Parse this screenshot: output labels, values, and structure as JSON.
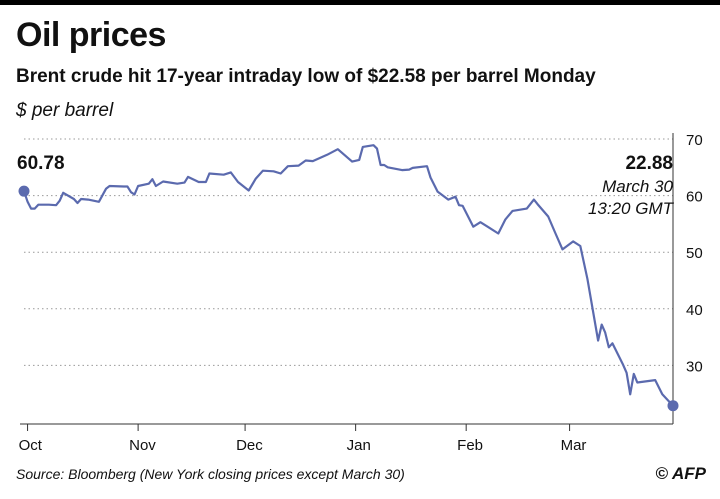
{
  "header": {
    "title": "Oil prices",
    "subtitle": "Brent crude hit 17-year intraday low of $22.58 per barrel Monday",
    "unit": "$ per barrel"
  },
  "footer": {
    "source": "Source: Bloomberg (New York closing prices except March 30)",
    "credit": "© AFP"
  },
  "colors": {
    "line": "#5b6aae",
    "grid": "#999999",
    "text": "#111111"
  },
  "chart_data": {
    "type": "line",
    "ylim": [
      20,
      70
    ],
    "xlim": [
      "2019-09-30",
      "2020-03-30"
    ],
    "yticks": [
      30,
      40,
      50,
      60,
      70
    ],
    "grid": true,
    "grid_style": "dotted-horizontal",
    "x_ticks": [
      {
        "label": "Oct",
        "date": "2019-10-01"
      },
      {
        "label": "Nov",
        "date": "2019-11-01"
      },
      {
        "label": "Dec",
        "date": "2019-12-01"
      },
      {
        "label": "Jan",
        "date": "2020-01-01"
      },
      {
        "label": "Feb",
        "date": "2020-02-01"
      },
      {
        "label": "Mar",
        "date": "2020-03-01"
      }
    ],
    "annotations": {
      "start": {
        "value_label": "60.78",
        "date": "2019-09-30",
        "value": 60.78
      },
      "end": {
        "value_label": "22.88",
        "date_label": "March 30",
        "time_label": "13:20 GMT",
        "date": "2020-03-30",
        "value": 22.88
      }
    },
    "series": [
      {
        "points": [
          [
            "2019-09-30",
            60.78
          ],
          [
            "2019-10-01",
            58.9
          ],
          [
            "2019-10-02",
            57.7
          ],
          [
            "2019-10-03",
            57.7
          ],
          [
            "2019-10-04",
            58.4
          ],
          [
            "2019-10-07",
            58.4
          ],
          [
            "2019-10-09",
            58.3
          ],
          [
            "2019-10-10",
            59.1
          ],
          [
            "2019-10-11",
            60.5
          ],
          [
            "2019-10-14",
            59.4
          ],
          [
            "2019-10-15",
            58.7
          ],
          [
            "2019-10-16",
            59.4
          ],
          [
            "2019-10-18",
            59.3
          ],
          [
            "2019-10-21",
            58.9
          ],
          [
            "2019-10-23",
            61.2
          ],
          [
            "2019-10-24",
            61.7
          ],
          [
            "2019-10-28",
            61.6
          ],
          [
            "2019-10-29",
            61.6
          ],
          [
            "2019-10-30",
            60.6
          ],
          [
            "2019-10-31",
            60.2
          ],
          [
            "2019-11-01",
            61.7
          ],
          [
            "2019-11-04",
            62.1
          ],
          [
            "2019-11-05",
            62.9
          ],
          [
            "2019-11-06",
            61.7
          ],
          [
            "2019-11-08",
            62.5
          ],
          [
            "2019-11-12",
            62.1
          ],
          [
            "2019-11-14",
            62.3
          ],
          [
            "2019-11-15",
            63.3
          ],
          [
            "2019-11-18",
            62.4
          ],
          [
            "2019-11-20",
            62.4
          ],
          [
            "2019-11-21",
            63.9
          ],
          [
            "2019-11-25",
            63.7
          ],
          [
            "2019-11-27",
            64.1
          ],
          [
            "2019-11-29",
            62.4
          ],
          [
            "2019-12-02",
            60.9
          ],
          [
            "2019-12-04",
            63.0
          ],
          [
            "2019-12-06",
            64.4
          ],
          [
            "2019-12-09",
            64.3
          ],
          [
            "2019-12-11",
            63.9
          ],
          [
            "2019-12-13",
            65.2
          ],
          [
            "2019-12-16",
            65.3
          ],
          [
            "2019-12-18",
            66.2
          ],
          [
            "2019-12-20",
            66.1
          ],
          [
            "2019-12-24",
            67.2
          ],
          [
            "2019-12-27",
            68.2
          ],
          [
            "2019-12-31",
            66.0
          ],
          [
            "2020-01-02",
            66.3
          ],
          [
            "2020-01-03",
            68.6
          ],
          [
            "2020-01-06",
            68.9
          ],
          [
            "2020-01-07",
            68.3
          ],
          [
            "2020-01-08",
            65.4
          ],
          [
            "2020-01-09",
            65.4
          ],
          [
            "2020-01-10",
            65.0
          ],
          [
            "2020-01-14",
            64.5
          ],
          [
            "2020-01-16",
            64.6
          ],
          [
            "2020-01-17",
            64.9
          ],
          [
            "2020-01-21",
            65.2
          ],
          [
            "2020-01-22",
            63.2
          ],
          [
            "2020-01-24",
            60.7
          ],
          [
            "2020-01-27",
            59.3
          ],
          [
            "2020-01-29",
            59.8
          ],
          [
            "2020-01-30",
            58.3
          ],
          [
            "2020-01-31",
            58.2
          ],
          [
            "2020-02-03",
            54.5
          ],
          [
            "2020-02-05",
            55.3
          ],
          [
            "2020-02-07",
            54.5
          ],
          [
            "2020-02-10",
            53.3
          ],
          [
            "2020-02-12",
            55.8
          ],
          [
            "2020-02-14",
            57.3
          ],
          [
            "2020-02-18",
            57.7
          ],
          [
            "2020-02-20",
            59.3
          ],
          [
            "2020-02-21",
            58.5
          ],
          [
            "2020-02-24",
            56.3
          ],
          [
            "2020-02-26",
            53.4
          ],
          [
            "2020-02-28",
            50.5
          ],
          [
            "2020-03-02",
            51.9
          ],
          [
            "2020-03-04",
            51.1
          ],
          [
            "2020-03-06",
            45.3
          ],
          [
            "2020-03-09",
            34.4
          ],
          [
            "2020-03-10",
            37.2
          ],
          [
            "2020-03-11",
            35.8
          ],
          [
            "2020-03-12",
            33.2
          ],
          [
            "2020-03-13",
            33.9
          ],
          [
            "2020-03-16",
            30.1
          ],
          [
            "2020-03-17",
            28.7
          ],
          [
            "2020-03-18",
            24.9
          ],
          [
            "2020-03-19",
            28.5
          ],
          [
            "2020-03-20",
            26.98
          ],
          [
            "2020-03-25",
            27.4
          ],
          [
            "2020-03-27",
            24.9
          ],
          [
            "2020-03-30",
            22.88
          ]
        ]
      }
    ]
  }
}
